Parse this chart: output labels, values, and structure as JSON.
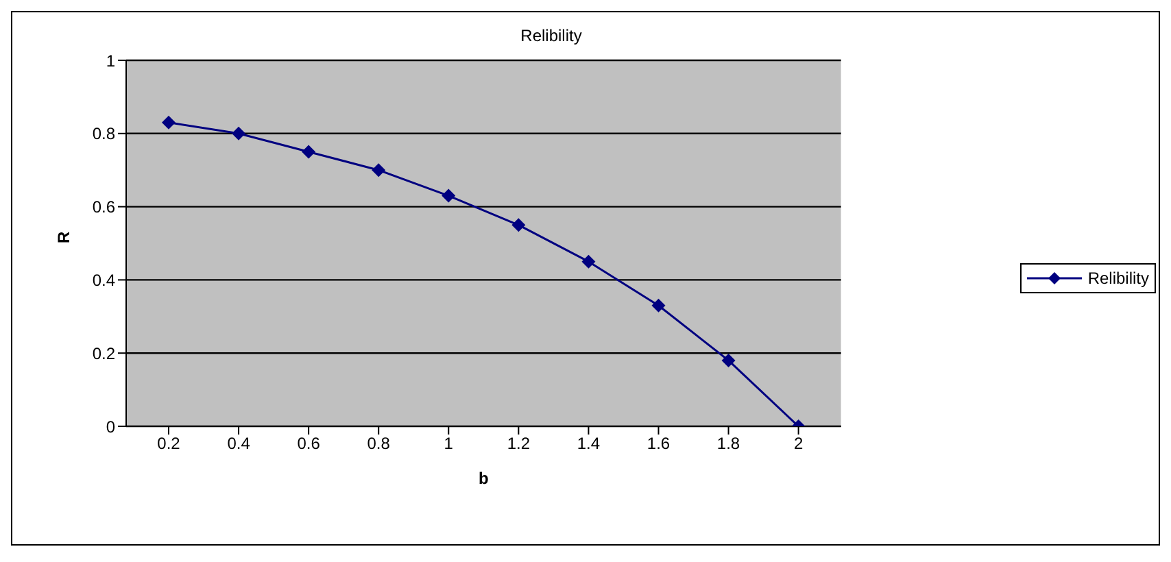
{
  "chart_data": {
    "type": "line",
    "title": "Relibility",
    "xlabel": "b",
    "ylabel": "R",
    "categories": [
      "0.2",
      "0.4",
      "0.6",
      "0.8",
      "1",
      "1.2",
      "1.4",
      "1.6",
      "1.8",
      "2"
    ],
    "series": [
      {
        "name": "Relibility",
        "color": "#000080",
        "values": [
          0.83,
          0.8,
          0.75,
          0.7,
          0.63,
          0.55,
          0.45,
          0.33,
          0.18,
          0
        ]
      }
    ],
    "ylim": [
      0,
      1
    ],
    "yticks": [
      0,
      0.2,
      0.4,
      0.6,
      0.8,
      1
    ],
    "grid": "y",
    "legend": "right",
    "marker": "diamond"
  }
}
